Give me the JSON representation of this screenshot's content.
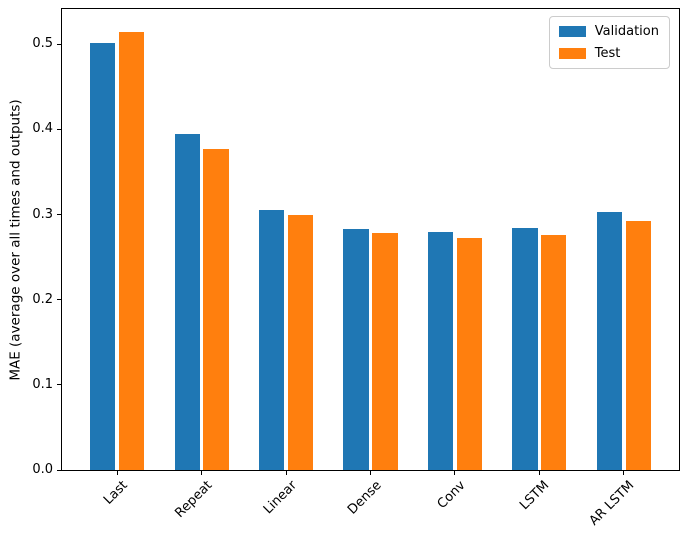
{
  "figure": {
    "background": "#ffffff",
    "spine_color": "#000000",
    "legend_border_color": "#cccccc"
  },
  "chart_data": {
    "type": "bar",
    "title": "",
    "xlabel": "",
    "ylabel": "MAE (average over all times and outputs)",
    "categories": [
      "Last",
      "Repeat",
      "Linear",
      "Dense",
      "Conv",
      "LSTM",
      "AR LSTM"
    ],
    "series": [
      {
        "name": "Validation",
        "color": "#1f77b4",
        "values": [
          0.501,
          0.395,
          0.305,
          0.283,
          0.28,
          0.284,
          0.303
        ]
      },
      {
        "name": "Test",
        "color": "#ff7f0e",
        "values": [
          0.515,
          0.377,
          0.299,
          0.278,
          0.272,
          0.276,
          0.292
        ]
      }
    ],
    "ylim": [
      0,
      0.5415
    ],
    "xlim": [
      -0.652,
      6.652
    ],
    "yticks": [
      "0.0",
      "0.1",
      "0.2",
      "0.3",
      "0.4",
      "0.5"
    ],
    "ytick_values": [
      0.0,
      0.1,
      0.2,
      0.3,
      0.4,
      0.5
    ],
    "bar_width_units": 0.3,
    "bar_offsets_units": [
      -0.32,
      0.02
    ],
    "xtick_rotation_deg": 45,
    "grid": false,
    "legend_position": "upper right",
    "legend_entries": [
      "Validation",
      "Test"
    ]
  }
}
